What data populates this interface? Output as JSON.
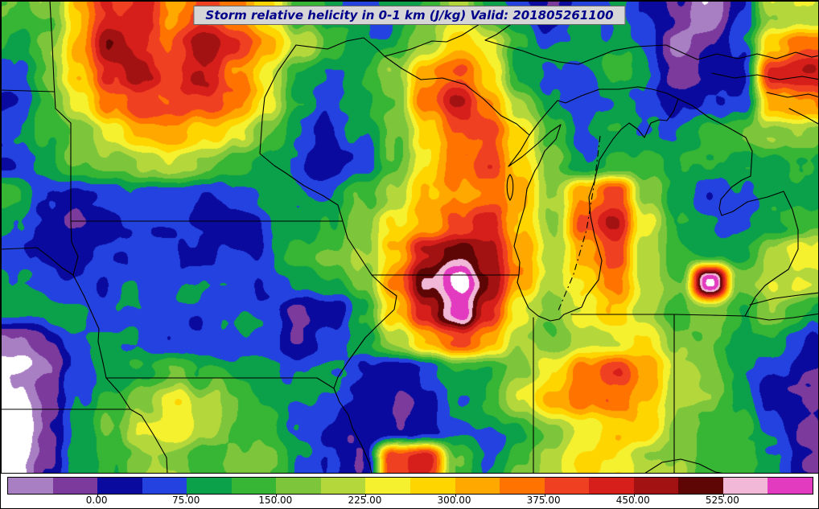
{
  "title": "Storm relative helicity in 0-1 km (J/kg) Valid: 201805261100",
  "colors": {
    "title_text": "#00008b",
    "title_background": "#d6d6d6",
    "frame": "#000000"
  },
  "colorbar": {
    "min": -75,
    "max": 600,
    "tick_labels": [
      "0.00",
      "75.00",
      "150.00",
      "225.00",
      "300.00",
      "375.00",
      "450.00",
      "525.00"
    ],
    "tick_values": [
      0,
      75,
      150,
      225,
      300,
      375,
      450,
      525
    ]
  },
  "chart_data": {
    "type": "heatmap",
    "title": "Storm relative helicity in 0-1 km (J/kg)",
    "valid_time": "201805261100",
    "units": "J/kg",
    "region": "Upper Midwest United States and Great Lakes",
    "legend_position": "bottom horizontal colorbar",
    "levels": [
      -75,
      -37.5,
      0,
      37.5,
      75,
      112.5,
      150,
      187.5,
      225,
      262.5,
      300,
      337.5,
      375,
      412.5,
      450,
      487.5,
      525,
      562.5,
      600
    ],
    "colors": [
      "#ffffff",
      "#a97fc4",
      "#7c3a9d",
      "#0a0a9e",
      "#2442e0",
      "#0aa14a",
      "#37b534",
      "#7dc63c",
      "#b4d83c",
      "#f5f12f",
      "#ffd500",
      "#ffa800",
      "#ff7300",
      "#f04022",
      "#d61f1a",
      "#a31212",
      "#5e0606",
      "#f2b8d8",
      "#e23bc0",
      "#ffffff"
    ],
    "grid_note": "Coarse 26x16 grid of estimated helicity values (J/kg) sampled across the map, left-to-right / top-to-bottom; rendered with smooth interpolation plus small-scale noise to emulate the filled-contour field.",
    "grid": [
      [
        100,
        150,
        300,
        400,
        430,
        330,
        400,
        320,
        250,
        120,
        60,
        95,
        110,
        180,
        240,
        140,
        100,
        60,
        90,
        110,
        50,
        25,
        -20,
        20,
        150,
        200
      ],
      [
        110,
        180,
        310,
        460,
        420,
        390,
        450,
        400,
        310,
        230,
        130,
        60,
        100,
        150,
        260,
        230,
        130,
        100,
        60,
        90,
        45,
        -30,
        15,
        50,
        280,
        380
      ],
      [
        95,
        160,
        260,
        400,
        470,
        410,
        430,
        330,
        240,
        130,
        65,
        95,
        120,
        280,
        330,
        260,
        140,
        90,
        30,
        80,
        40,
        -10,
        20,
        60,
        420,
        440
      ],
      [
        80,
        120,
        200,
        320,
        400,
        380,
        350,
        300,
        220,
        120,
        50,
        70,
        140,
        320,
        420,
        330,
        230,
        120,
        70,
        60,
        50,
        30,
        45,
        70,
        300,
        350
      ],
      [
        70,
        90,
        140,
        220,
        280,
        300,
        260,
        200,
        140,
        80,
        40,
        50,
        130,
        300,
        420,
        380,
        260,
        140,
        80,
        90,
        70,
        60,
        80,
        120,
        180,
        200
      ],
      [
        50,
        60,
        90,
        140,
        180,
        200,
        160,
        120,
        90,
        35,
        30,
        60,
        150,
        280,
        380,
        420,
        300,
        180,
        110,
        160,
        120,
        90,
        70,
        90,
        110,
        140
      ],
      [
        120,
        60,
        35,
        25,
        30,
        45,
        35,
        60,
        80,
        50,
        70,
        120,
        200,
        300,
        360,
        380,
        320,
        200,
        350,
        430,
        200,
        100,
        60,
        40,
        90,
        120
      ],
      [
        90,
        40,
        20,
        15,
        20,
        30,
        25,
        40,
        60,
        40,
        90,
        150,
        260,
        340,
        420,
        430,
        280,
        160,
        380,
        480,
        260,
        120,
        80,
        60,
        130,
        160
      ],
      [
        45,
        30,
        20,
        25,
        35,
        25,
        35,
        55,
        45,
        60,
        110,
        180,
        320,
        480,
        520,
        450,
        300,
        180,
        300,
        400,
        220,
        140,
        120,
        100,
        200,
        280
      ],
      [
        55,
        40,
        30,
        20,
        30,
        40,
        50,
        70,
        50,
        40,
        90,
        200,
        380,
        540,
        620,
        480,
        340,
        200,
        260,
        340,
        180,
        120,
        600,
        150,
        180,
        220
      ],
      [
        70,
        55,
        45,
        35,
        45,
        55,
        45,
        60,
        35,
        -40,
        -10,
        120,
        300,
        460,
        580,
        420,
        260,
        180,
        220,
        280,
        160,
        100,
        140,
        90,
        120,
        90
      ],
      [
        -60,
        -20,
        40,
        60,
        80,
        60,
        45,
        55,
        40,
        -20,
        40,
        100,
        200,
        320,
        380,
        300,
        200,
        140,
        180,
        220,
        250,
        130,
        110,
        80,
        60,
        40
      ],
      [
        -110,
        -60,
        20,
        80,
        140,
        180,
        120,
        80,
        60,
        40,
        60,
        30,
        20,
        60,
        120,
        100,
        140,
        200,
        320,
        420,
        300,
        160,
        120,
        90,
        50,
        30
      ],
      [
        -120,
        -70,
        30,
        120,
        220,
        280,
        180,
        100,
        70,
        50,
        40,
        25,
        15,
        40,
        80,
        120,
        180,
        260,
        340,
        380,
        260,
        180,
        140,
        100,
        40,
        20
      ],
      [
        -100,
        -40,
        40,
        140,
        240,
        260,
        160,
        90,
        120,
        80,
        50,
        30,
        25,
        60,
        100,
        90,
        110,
        160,
        220,
        280,
        300,
        200,
        160,
        120,
        60,
        30
      ],
      [
        -80,
        -20,
        60,
        120,
        180,
        160,
        110,
        130,
        150,
        90,
        60,
        40,
        420,
        470,
        200,
        140,
        180,
        240,
        260,
        240,
        200,
        230,
        180,
        140,
        80,
        40
      ]
    ]
  }
}
